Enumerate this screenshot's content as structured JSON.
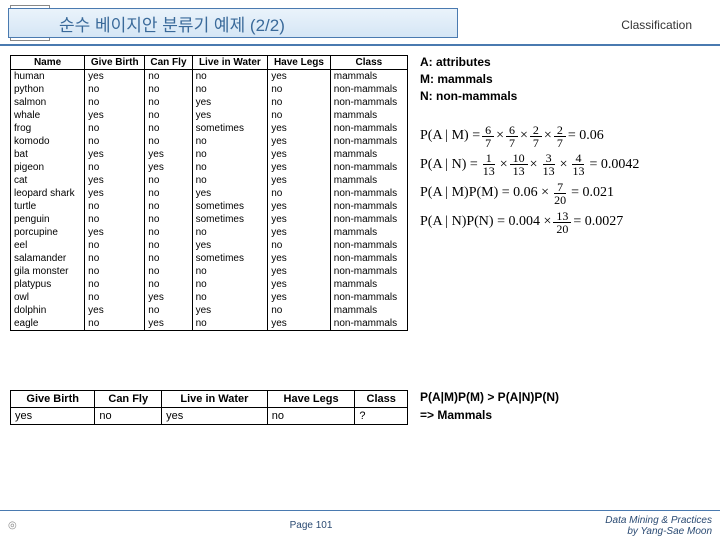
{
  "header": {
    "title": "순수 베이지안 분류기 예제 (2/2)",
    "category": "Classification",
    "icon": "📖"
  },
  "legend": {
    "a": "A: attributes",
    "m": "M: mammals",
    "n": "N: non-mammals"
  },
  "formulas": {
    "pam_lhs": "P(A | M) =",
    "pam_f": [
      [
        "6",
        "7"
      ],
      [
        "6",
        "7"
      ],
      [
        "2",
        "7"
      ],
      [
        "2",
        "7"
      ]
    ],
    "pam_rhs": "= 0.06",
    "pan_lhs": "P(A | N) =",
    "pan_f": [
      [
        "1",
        "13"
      ],
      [
        "10",
        "13"
      ],
      [
        "3",
        "13"
      ],
      [
        "4",
        "13"
      ]
    ],
    "pan_rhs": "= 0.0042",
    "pampm_lhs": "P(A | M)P(M) = 0.06 ×",
    "pampm_f": [
      "7",
      "20"
    ],
    "pampm_rhs": "= 0.021",
    "panpn_lhs": "P(A | N)P(N) = 0.004 ×",
    "panpn_f": [
      "13",
      "20"
    ],
    "panpn_rhs": "= 0.0027"
  },
  "table": {
    "headers": [
      "Name",
      "Give Birth",
      "Can Fly",
      "Live in Water",
      "Have Legs",
      "Class"
    ],
    "rows": [
      [
        "human",
        "yes",
        "no",
        "no",
        "yes",
        "mammals"
      ],
      [
        "python",
        "no",
        "no",
        "no",
        "no",
        "non-mammals"
      ],
      [
        "salmon",
        "no",
        "no",
        "yes",
        "no",
        "non-mammals"
      ],
      [
        "whale",
        "yes",
        "no",
        "yes",
        "no",
        "mammals"
      ],
      [
        "frog",
        "no",
        "no",
        "sometimes",
        "yes",
        "non-mammals"
      ],
      [
        "komodo",
        "no",
        "no",
        "no",
        "yes",
        "non-mammals"
      ],
      [
        "bat",
        "yes",
        "yes",
        "no",
        "yes",
        "mammals"
      ],
      [
        "pigeon",
        "no",
        "yes",
        "no",
        "yes",
        "non-mammals"
      ],
      [
        "cat",
        "yes",
        "no",
        "no",
        "yes",
        "mammals"
      ],
      [
        "leopard shark",
        "yes",
        "no",
        "yes",
        "no",
        "non-mammals"
      ],
      [
        "turtle",
        "no",
        "no",
        "sometimes",
        "yes",
        "non-mammals"
      ],
      [
        "penguin",
        "no",
        "no",
        "sometimes",
        "yes",
        "non-mammals"
      ],
      [
        "porcupine",
        "yes",
        "no",
        "no",
        "yes",
        "mammals"
      ],
      [
        "eel",
        "no",
        "no",
        "yes",
        "no",
        "non-mammals"
      ],
      [
        "salamander",
        "no",
        "no",
        "sometimes",
        "yes",
        "non-mammals"
      ],
      [
        "gila monster",
        "no",
        "no",
        "no",
        "yes",
        "non-mammals"
      ],
      [
        "platypus",
        "no",
        "no",
        "no",
        "yes",
        "mammals"
      ],
      [
        "owl",
        "no",
        "yes",
        "no",
        "yes",
        "non-mammals"
      ],
      [
        "dolphin",
        "yes",
        "no",
        "yes",
        "no",
        "mammals"
      ],
      [
        "eagle",
        "no",
        "yes",
        "no",
        "yes",
        "non-mammals"
      ]
    ]
  },
  "query": {
    "headers": [
      "Give Birth",
      "Can Fly",
      "Live in Water",
      "Have Legs",
      "Class"
    ],
    "row": [
      "yes",
      "no",
      "yes",
      "no",
      "?"
    ]
  },
  "conclusion": {
    "line1": "P(A|M)P(M) > P(A|N)P(N)",
    "line2": "=> Mammals"
  },
  "footer": {
    "logo_text": "◎",
    "page": "Page 101",
    "credits1": "Data Mining & Practices",
    "credits2": "by Yang-Sae Moon"
  },
  "colors": {
    "header_border": "#4a7ab0",
    "header_text": "#3a6a9a"
  }
}
